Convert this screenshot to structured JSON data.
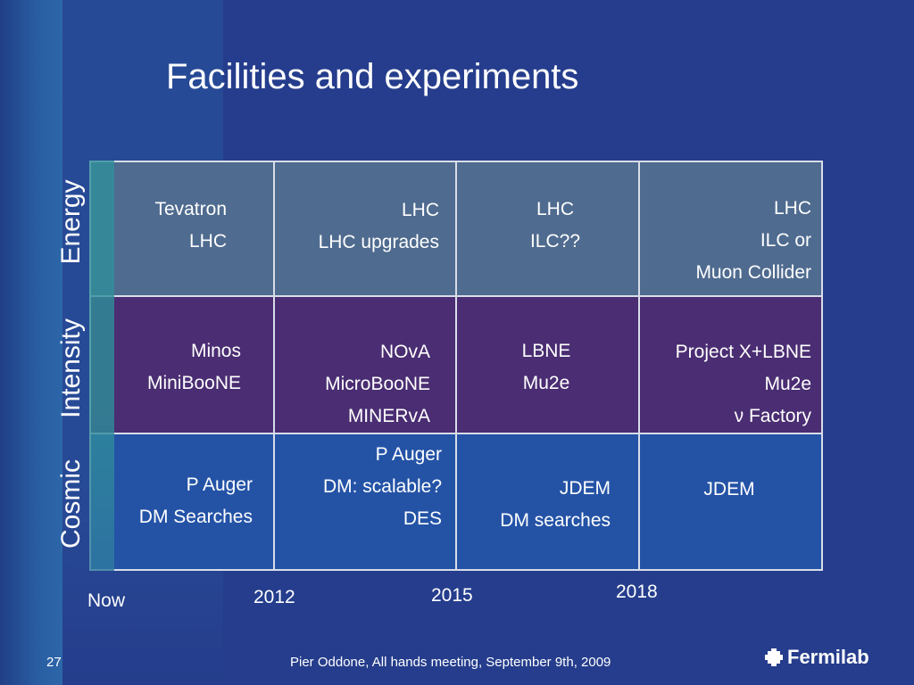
{
  "slide": {
    "title": "Facilities and experiments",
    "page_number": "27",
    "footer_text": "Pier Oddone,  All hands meeting, September 9th, 2009",
    "logo_text": "Fermilab"
  },
  "rows": [
    "Energy",
    "Intensity",
    "Cosmic"
  ],
  "time_axis": [
    "Now",
    "2012",
    "2015",
    "2018"
  ],
  "cells": {
    "energy": [
      [
        "Tevatron",
        "LHC"
      ],
      [
        "LHC",
        "LHC upgrades"
      ],
      [
        "LHC",
        "ILC??"
      ],
      [
        "LHC",
        "ILC or",
        "Muon Collider"
      ]
    ],
    "intensity": [
      [
        "Minos",
        "MiniBooNE"
      ],
      [
        "NOvA",
        "MicroBooNE",
        "MINERvA"
      ],
      [
        "LBNE",
        "Mu2e"
      ],
      [
        "Project X+LBNE",
        "Mu2e",
        "ν Factory"
      ]
    ],
    "cosmic": [
      [
        "P Auger",
        "DM Searches"
      ],
      [
        "P Auger",
        "DM: scalable?",
        "DES"
      ],
      [
        "JDEM",
        "DM searches"
      ],
      [
        "JDEM"
      ]
    ]
  },
  "colors": {
    "background": "#253d8c",
    "energy_row": "#4f6b8f",
    "intensity_row": "#4a2d72",
    "cosmic_row": "#2453a6"
  }
}
